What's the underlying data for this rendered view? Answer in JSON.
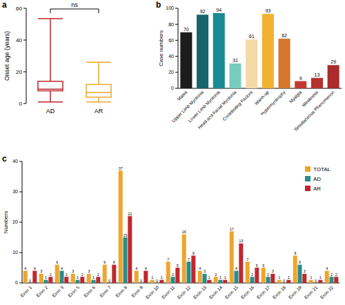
{
  "chart_data": [
    {
      "type": "box",
      "title": "a",
      "y_label": "Onset age (years)",
      "categories": [
        "AD",
        "AR"
      ],
      "min": [
        1,
        1
      ],
      "q1": [
        8,
        4
      ],
      "median": [
        9,
        7
      ],
      "q3": [
        14,
        12
      ],
      "max": [
        53.5,
        26
      ],
      "colors": [
        "#b8272c",
        "#eda62c"
      ],
      "annotations": [
        "ns"
      ],
      "ylim": [
        0,
        60
      ],
      "yticks": [
        0,
        20,
        40,
        60
      ]
    },
    {
      "type": "bar",
      "title": "b",
      "y_label": "Case numbers",
      "categories": [
        "Males",
        "Upper Limb Myotonia",
        "Lower Limb Myotonia",
        "Head and Facial Myotonia",
        "Contributing Factors",
        "Warm-up",
        "Hypermyotrophy",
        "Myalgia",
        "Weakness",
        "Simultaneous Phenomenon"
      ],
      "values": [
        70,
        92,
        94,
        31,
        61,
        93,
        62,
        9,
        13,
        29
      ],
      "colors": [
        "#1c1c1c",
        "#16656e",
        "#1a8b92",
        "#79cbbf",
        "#f2d9a6",
        "#f2b131",
        "#d5762a",
        "#c23a2f",
        "#b5322c",
        "#a92b2b"
      ],
      "data_labels": true,
      "ylim": [
        0,
        100
      ],
      "yticks": [
        0,
        20,
        40,
        60,
        80,
        100
      ]
    },
    {
      "type": "bar",
      "title": "c",
      "y_label": "Numbers",
      "categories": [
        "Exon 1",
        "Exon 2",
        "Exon 3",
        "Exon 5",
        "Exon 6",
        "Exon 7",
        "Exon 8",
        "Exon 9",
        "Exon 10",
        "Exon 11",
        "Exon 12",
        "Exon 13",
        "Exon 14",
        "Exon 15",
        "Exon 16",
        "Exon 17",
        "Exon 18",
        "Exon 19",
        "Exon 21",
        "Exon 22"
      ],
      "series": [
        {
          "name": "TOTAL",
          "color": "#eda62c",
          "values": [
            4,
            3,
            6,
            3,
            3,
            6,
            37,
            4,
            1,
            7,
            16,
            4,
            2,
            17,
            7,
            5,
            1,
            9,
            1,
            4
          ]
        },
        {
          "name": "AD",
          "color": "#2a8c8c",
          "values": [
            0,
            1,
            4,
            1,
            1,
            0,
            15,
            0,
            0,
            2,
            7,
            3,
            1,
            4,
            2,
            2,
            0,
            6,
            0,
            2
          ]
        },
        {
          "name": "AR",
          "color": "#c0282d",
          "values": [
            4,
            2,
            2,
            2,
            2,
            6,
            22,
            4,
            1,
            5,
            9,
            1,
            1,
            13,
            5,
            3,
            1,
            3,
            1,
            2
          ]
        }
      ],
      "data_labels": true,
      "legend": "top-right",
      "ylim": [
        0,
        40
      ],
      "yticks": [
        0,
        10,
        20,
        30,
        40
      ]
    }
  ]
}
